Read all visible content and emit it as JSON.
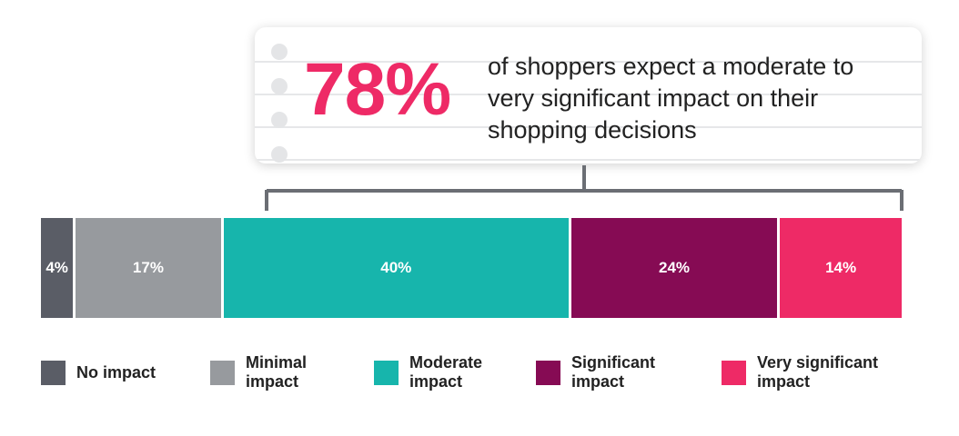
{
  "callout": {
    "value": "78%",
    "text": "of shoppers expect a moderate to very significant impact on their shopping decisions"
  },
  "chart_data": {
    "type": "bar",
    "orientation": "horizontal-stacked",
    "title": "",
    "xlabel": "",
    "ylabel": "",
    "categories": [
      "No impact",
      "Minimal impact",
      "Moderate impact",
      "Significant impact",
      "Very significant impact"
    ],
    "values": [
      4,
      17,
      40,
      24,
      14
    ],
    "labels": [
      "4%",
      "17%",
      "40%",
      "24%",
      "14%"
    ],
    "colors": [
      "#5a5d66",
      "#979a9e",
      "#17b5ac",
      "#860b54",
      "#ee2a66"
    ],
    "legend": [
      {
        "lines": [
          "No impact"
        ],
        "color": "#5a5d66"
      },
      {
        "lines": [
          "Minimal",
          "impact"
        ],
        "color": "#979a9e"
      },
      {
        "lines": [
          "Moderate",
          "impact"
        ],
        "color": "#17b5ac"
      },
      {
        "lines": [
          "Significant",
          "impact"
        ],
        "color": "#860b54"
      },
      {
        "lines": [
          "Very significant",
          "impact"
        ],
        "color": "#ee2a66"
      }
    ],
    "legend_position": "bottom"
  }
}
